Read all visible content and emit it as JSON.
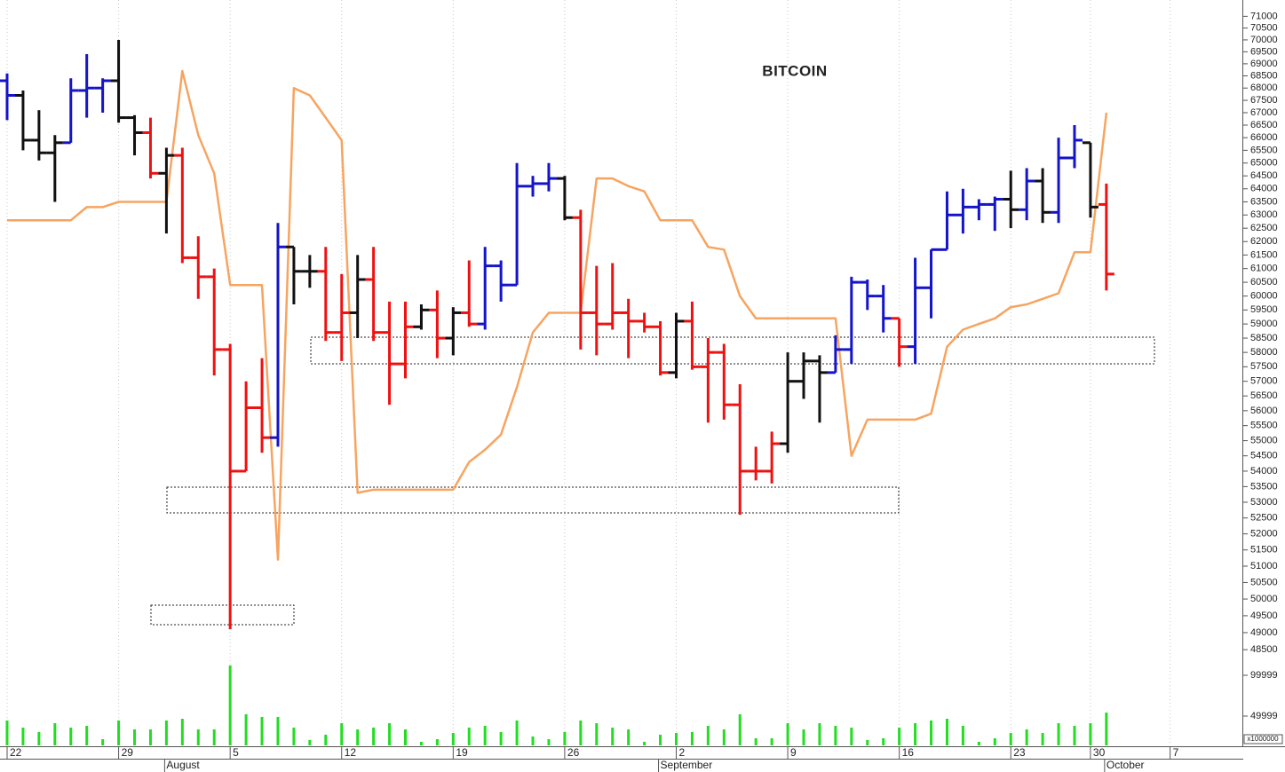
{
  "chart_data": {
    "type": "ohlc",
    "title": "BITCOIN",
    "log_scale": true,
    "grid": true,
    "categories": [
      "22",
      null,
      null,
      null,
      null,
      null,
      null,
      "29",
      null,
      null,
      null,
      null,
      null,
      null,
      "5",
      null,
      null,
      null,
      null,
      null,
      null,
      "12",
      null,
      null,
      null,
      null,
      null,
      null,
      "19",
      null,
      null,
      null,
      null,
      null,
      null,
      "26",
      null,
      null,
      null,
      null,
      null,
      null,
      "2",
      null,
      null,
      null,
      null,
      null,
      null,
      "9",
      null,
      null,
      null,
      null,
      null,
      null,
      "16",
      null,
      null,
      null,
      null,
      null,
      null,
      "23",
      null,
      null,
      null,
      null,
      "30",
      null,
      null,
      null,
      null,
      "7"
    ],
    "months": [
      null,
      null,
      null,
      null,
      null,
      null,
      null,
      null,
      null,
      null,
      "August",
      null,
      null,
      null,
      null,
      null,
      null,
      null,
      null,
      null,
      null,
      null,
      null,
      null,
      null,
      null,
      null,
      null,
      null,
      null,
      null,
      null,
      null,
      null,
      null,
      null,
      null,
      null,
      null,
      null,
      null,
      "September",
      null,
      null,
      null,
      null,
      null,
      null,
      null,
      null,
      null,
      null,
      null,
      null,
      null,
      null,
      null,
      null,
      null,
      null,
      null,
      null,
      null,
      null,
      null,
      null,
      null,
      null,
      null,
      "October",
      null,
      null,
      null,
      null
    ],
    "open": [
      68300,
      67700,
      65900,
      65400,
      65800,
      67900,
      68000,
      68300,
      66800,
      66200,
      64600,
      65300,
      61400,
      60700,
      58100,
      54000,
      56100,
      55100,
      61800,
      60900,
      60900,
      58700,
      59400,
      60600,
      58700,
      57600,
      58900,
      59500,
      58500,
      59400,
      59000,
      61100,
      60400,
      64100,
      64200,
      64400,
      62900,
      59400,
      59000,
      59400,
      59100,
      58900,
      57300,
      59100,
      57500,
      58000,
      56200,
      54000,
      54000,
      54900,
      57000,
      57700,
      57300,
      58100,
      60500,
      60000,
      59200,
      58200,
      60300,
      61700,
      63000,
      63300,
      63400,
      63600,
      63200,
      64300,
      63100,
      65200,
      65800,
      63400,
      null,
      null,
      null,
      null
    ],
    "high": [
      68600,
      67900,
      67100,
      66100,
      68400,
      69400,
      68400,
      70000,
      66900,
      66800,
      65600,
      65600,
      62200,
      61000,
      58300,
      57000,
      57800,
      62700,
      61800,
      61500,
      61800,
      60800,
      61500,
      61800,
      59800,
      59800,
      59700,
      60200,
      59600,
      61300,
      61800,
      61300,
      65000,
      64500,
      65000,
      64500,
      63200,
      61100,
      61200,
      59900,
      59400,
      59100,
      59400,
      59800,
      58500,
      58300,
      56900,
      54800,
      55300,
      58000,
      58000,
      57900,
      58600,
      60700,
      60600,
      60400,
      59200,
      61400,
      61700,
      63900,
      64000,
      63600,
      63700,
      64700,
      64800,
      64800,
      66000,
      66500,
      65800,
      64200,
      null,
      null,
      null,
      null
    ],
    "low": [
      66700,
      65500,
      65100,
      63500,
      65800,
      66800,
      67000,
      66600,
      65300,
      64400,
      62300,
      61200,
      59900,
      57200,
      49100,
      54000,
      54600,
      54800,
      59700,
      60300,
      58400,
      57700,
      58500,
      58400,
      56200,
      57100,
      58800,
      57800,
      57900,
      58900,
      58800,
      59800,
      60400,
      63700,
      63900,
      62800,
      58100,
      57900,
      58800,
      57800,
      58700,
      57200,
      57100,
      57400,
      55600,
      55700,
      52600,
      53700,
      53600,
      54600,
      56400,
      55600,
      57300,
      57600,
      59500,
      58700,
      57500,
      57600,
      59200,
      61700,
      62300,
      62800,
      62400,
      62500,
      62800,
      62700,
      62700,
      64800,
      62900,
      60200,
      null,
      null,
      null,
      null
    ],
    "close": [
      67700,
      65900,
      65400,
      65800,
      67900,
      68000,
      68300,
      66800,
      66200,
      64600,
      65300,
      61400,
      60700,
      58100,
      54000,
      56100,
      55100,
      61800,
      60900,
      60900,
      58700,
      59400,
      60600,
      58700,
      57600,
      58900,
      59500,
      58500,
      59400,
      59000,
      61100,
      60400,
      64100,
      64200,
      64400,
      62900,
      59400,
      59000,
      59400,
      59100,
      58900,
      57300,
      59100,
      57500,
      58000,
      56200,
      54000,
      54000,
      54900,
      57000,
      57700,
      57300,
      58100,
      60500,
      60000,
      59200,
      58200,
      60300,
      61700,
      63000,
      63300,
      63400,
      63600,
      63200,
      64300,
      63100,
      65200,
      65900,
      63300,
      60800,
      null,
      null,
      null,
      null
    ],
    "bar_colors": [
      "#1414c8",
      "#111111",
      "#111111",
      "#111111",
      "#1414c8",
      "#1414c8",
      "#1414c8",
      "#111111",
      "#111111",
      "#ee1111",
      "#111111",
      "#ee1111",
      "#ee1111",
      "#ee1111",
      "#ee1111",
      "#ee1111",
      "#ee1111",
      "#1414c8",
      "#111111",
      "#111111",
      "#ee1111",
      "#ee1111",
      "#111111",
      "#ee1111",
      "#ee1111",
      "#ee1111",
      "#111111",
      "#ee1111",
      "#111111",
      "#ee1111",
      "#1414c8",
      "#1414c8",
      "#1414c8",
      "#1414c8",
      "#1414c8",
      "#111111",
      "#ee1111",
      "#ee1111",
      "#ee1111",
      "#ee1111",
      "#ee1111",
      "#ee1111",
      "#111111",
      "#ee1111",
      "#ee1111",
      "#ee1111",
      "#ee1111",
      "#ee1111",
      "#ee1111",
      "#111111",
      "#111111",
      "#111111",
      "#1414c8",
      "#1414c8",
      "#1414c8",
      "#1414c8",
      "#ee1111",
      "#1414c8",
      "#1414c8",
      "#1414c8",
      "#1414c8",
      "#1414c8",
      "#1414c8",
      "#111111",
      "#1414c8",
      "#111111",
      "#1414c8",
      "#1414c8",
      "#111111",
      "#ee1111",
      null,
      null,
      null,
      null
    ],
    "overlay": {
      "color": "#f7a460",
      "values": [
        62800,
        62800,
        62800,
        62800,
        62800,
        63300,
        63300,
        63500,
        63500,
        63500,
        63500,
        68700,
        66100,
        64600,
        60400,
        60400,
        60400,
        51200,
        68000,
        67700,
        66800,
        65900,
        53300,
        53400,
        53400,
        53400,
        53400,
        53400,
        53400,
        54300,
        54700,
        55200,
        56800,
        58700,
        59400,
        59400,
        59400,
        64400,
        64400,
        64100,
        63900,
        62800,
        62800,
        62800,
        61800,
        61700,
        60000,
        59200,
        59200,
        59200,
        59200,
        59200,
        59200,
        54500,
        55700,
        55700,
        55700,
        55700,
        55900,
        58200,
        58800,
        59000,
        59200,
        59600,
        59700,
        59900,
        60100,
        61600,
        61600,
        67000,
        null,
        null,
        null,
        null
      ]
    },
    "ylim": [
      48400,
      71700
    ],
    "yticks": [
      48500,
      49000,
      49500,
      50000,
      50500,
      51000,
      51500,
      52000,
      52500,
      53000,
      53500,
      54000,
      54500,
      55000,
      55500,
      56000,
      56500,
      57000,
      57500,
      58000,
      58500,
      59000,
      59500,
      60000,
      60500,
      61000,
      61500,
      62000,
      62500,
      63000,
      63500,
      64000,
      64500,
      65000,
      65500,
      66000,
      66500,
      67000,
      67500,
      68000,
      68500,
      69000,
      69500,
      70000,
      70500,
      71000
    ],
    "volume": {
      "color": "#22dd22",
      "unit_label": "x1000000",
      "ylim": [
        14100,
        117400
      ],
      "yticks": [
        49999,
        99999
      ],
      "values": [
        44600,
        35900,
        30400,
        41300,
        35900,
        38000,
        21700,
        44600,
        33700,
        33700,
        44600,
        46700,
        33700,
        33700,
        112000,
        52200,
        48900,
        48900,
        35900,
        20700,
        27200,
        41300,
        33700,
        35900,
        41300,
        33700,
        18500,
        21700,
        29300,
        35900,
        38000,
        30400,
        44600,
        25000,
        21700,
        30400,
        44600,
        41300,
        35900,
        33700,
        18500,
        27200,
        29300,
        30400,
        38000,
        33700,
        52200,
        22800,
        22800,
        41300,
        33700,
        41300,
        38000,
        35900,
        20700,
        22800,
        35900,
        41300,
        44600,
        46700,
        38000,
        18500,
        22800,
        29300,
        33700,
        29300,
        41300,
        38000,
        41300,
        54300,
        null,
        null,
        null,
        null
      ]
    }
  }
}
